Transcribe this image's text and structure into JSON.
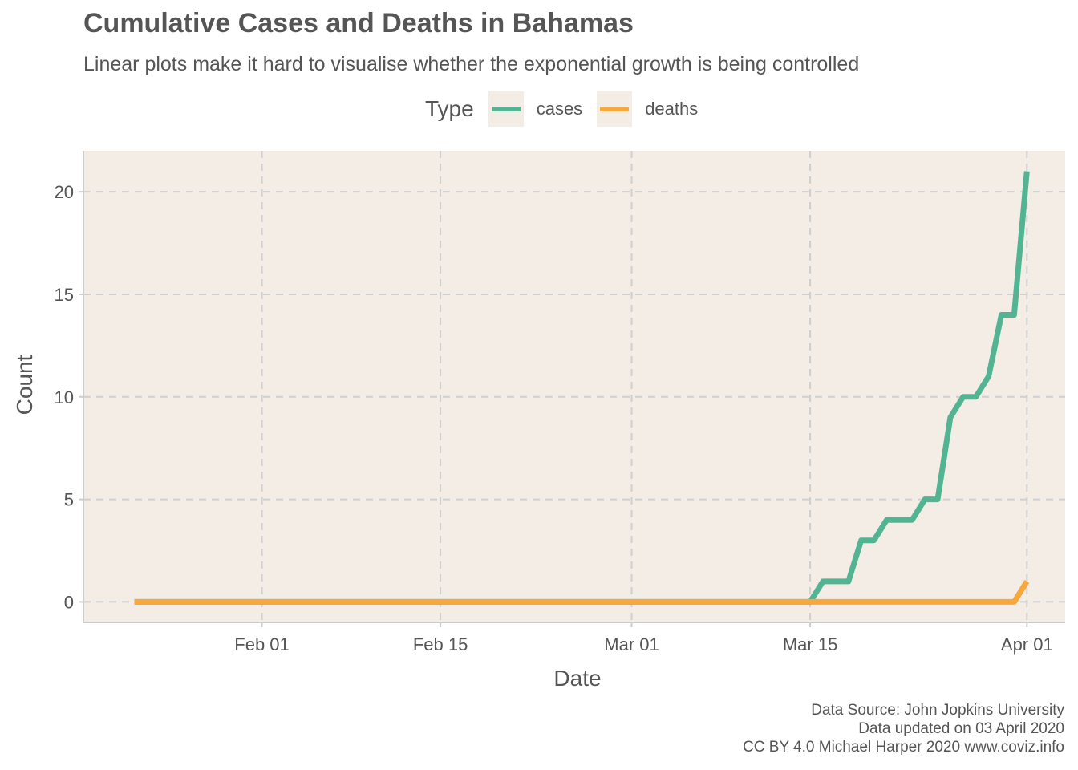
{
  "title": "Cumulative Cases and Deaths in Bahamas",
  "subtitle": "Linear plots make it hard to visualise whether the exponential growth is being controlled",
  "legend": {
    "title": "Type",
    "items": [
      {
        "label": "cases",
        "color": "#52b493"
      },
      {
        "label": "deaths",
        "color": "#f7a73b"
      }
    ]
  },
  "caption": {
    "line1": "Data Source: John Jopkins University",
    "line2": "Data updated on 03 April 2020",
    "line3": "CC BY 4.0 Michael Harper 2020 www.coviz.info"
  },
  "colors": {
    "panel_background": "#f3ede6",
    "grid": "#cfcfcf",
    "axis": "#cccccc",
    "text": "#555555"
  },
  "chart_data": {
    "type": "line",
    "title": "Cumulative Cases and Deaths in Bahamas",
    "subtitle": "Linear plots make it hard to visualise whether the exponential growth is being controlled",
    "xlabel": "Date",
    "ylabel": "Count",
    "x_type": "date",
    "xlim": [
      "2020-01-18",
      "2020-04-04"
    ],
    "ylim": [
      -1,
      22
    ],
    "x_ticks": [
      {
        "date": "2020-02-01",
        "label": "Feb 01"
      },
      {
        "date": "2020-02-15",
        "label": "Feb 15"
      },
      {
        "date": "2020-03-01",
        "label": "Mar 01"
      },
      {
        "date": "2020-03-15",
        "label": "Mar 15"
      },
      {
        "date": "2020-04-01",
        "label": "Apr 01"
      }
    ],
    "y_ticks": [
      0,
      5,
      10,
      15,
      20
    ],
    "grid": true,
    "grid_style": "dashed",
    "legend_position": "top",
    "series": [
      {
        "name": "cases",
        "color": "#52b493",
        "points": [
          {
            "x": "2020-01-22",
            "y": 0
          },
          {
            "x": "2020-03-15",
            "y": 0
          },
          {
            "x": "2020-03-16",
            "y": 1
          },
          {
            "x": "2020-03-18",
            "y": 1
          },
          {
            "x": "2020-03-19",
            "y": 3
          },
          {
            "x": "2020-03-20",
            "y": 3
          },
          {
            "x": "2020-03-21",
            "y": 4
          },
          {
            "x": "2020-03-23",
            "y": 4
          },
          {
            "x": "2020-03-24",
            "y": 5
          },
          {
            "x": "2020-03-25",
            "y": 5
          },
          {
            "x": "2020-03-26",
            "y": 9
          },
          {
            "x": "2020-03-27",
            "y": 10
          },
          {
            "x": "2020-03-28",
            "y": 10
          },
          {
            "x": "2020-03-29",
            "y": 11
          },
          {
            "x": "2020-03-30",
            "y": 14
          },
          {
            "x": "2020-03-31",
            "y": 14
          },
          {
            "x": "2020-04-01",
            "y": 21
          }
        ]
      },
      {
        "name": "deaths",
        "color": "#f7a73b",
        "points": [
          {
            "x": "2020-01-22",
            "y": 0
          },
          {
            "x": "2020-03-31",
            "y": 0
          },
          {
            "x": "2020-04-01",
            "y": 1
          }
        ]
      }
    ]
  }
}
